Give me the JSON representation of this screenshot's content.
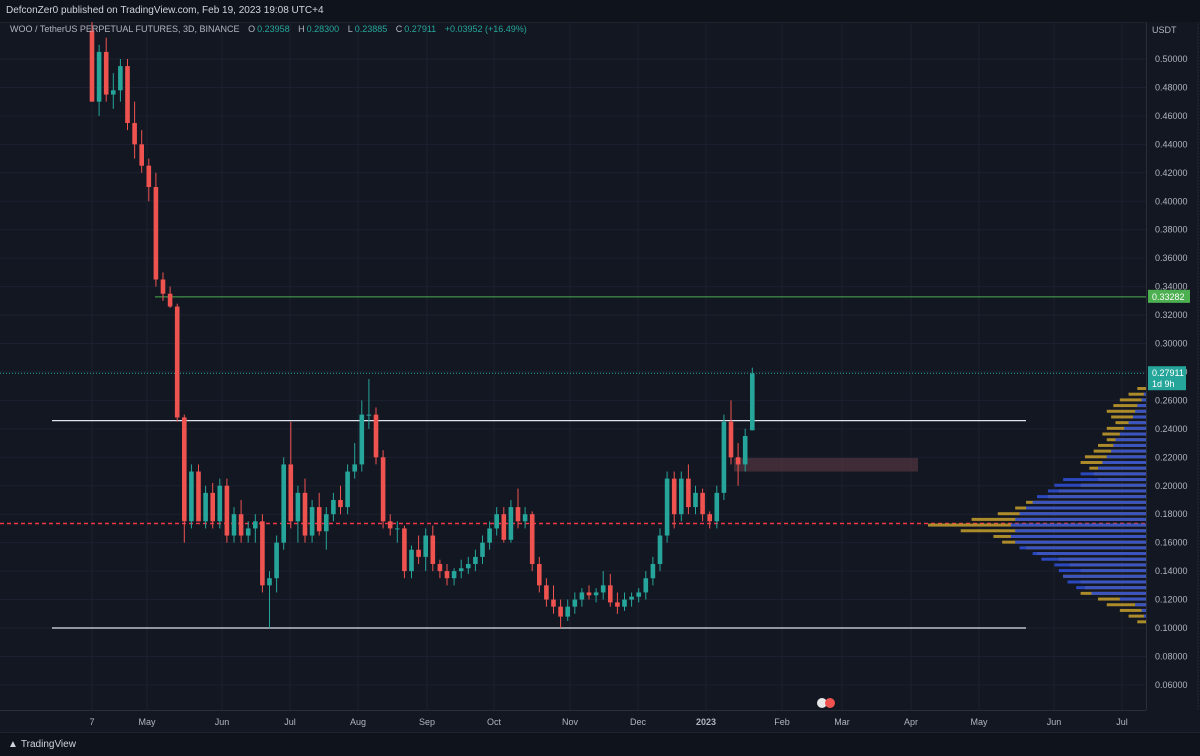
{
  "header": {
    "published_by": "DefconZer0 published on TradingView.com, Feb 19, 2023 19:08 UTC+4"
  },
  "symbol": {
    "name": "WOO / TetherUS PERPETUAL FUTURES, 3D, BINANCE",
    "open_label": "O",
    "open": "0.23958",
    "high_label": "H",
    "high": "0.28300",
    "low_label": "L",
    "low": "0.23885",
    "close_label": "C",
    "close": "0.27911",
    "change": "+0.03952 (+16.49%)"
  },
  "footer": {
    "logo_text": "TradingView"
  },
  "colors": {
    "background": "#131722",
    "bull": "#26a69a",
    "bear": "#ef5350",
    "green_line": "#4caf50",
    "red_dashed_line": "#f23645",
    "volume_profile_up": "#2f4ecf",
    "volume_profile_down": "#c8a02d"
  },
  "chart_data": {
    "type": "candlestick",
    "currency": "USDT",
    "y_ticks": [
      "0.50000",
      "0.48000",
      "0.46000",
      "0.44000",
      "0.42000",
      "0.40000",
      "0.38000",
      "0.36000",
      "0.34000",
      "0.32000",
      "0.30000",
      "0.28000",
      "0.26000",
      "0.24000",
      "0.22000",
      "0.20000",
      "0.18000",
      "0.16000",
      "0.14000",
      "0.12000",
      "0.10000",
      "0.08000",
      "0.06000"
    ],
    "x_ticks": [
      "7",
      "May",
      "Jun",
      "Jul",
      "Aug",
      "Sep",
      "Oct",
      "Nov",
      "Dec",
      "2023",
      "Feb",
      "Mar",
      "Apr",
      "May",
      "Jun",
      "Jul"
    ],
    "price_labels": {
      "resistance": "0.33282",
      "last_price": "0.27911",
      "countdown": "1d 9h"
    },
    "horizontal_levels": [
      {
        "price": 0.3328,
        "style": "solid",
        "color": "green"
      },
      {
        "price": 0.2458,
        "style": "solid",
        "color": "white"
      },
      {
        "price": 0.1735,
        "style": "dashed",
        "color": "red"
      },
      {
        "price": 0.1,
        "style": "solid",
        "color": "white"
      }
    ],
    "zone": {
      "price_top": 0.2195,
      "price_bottom": 0.21
    },
    "candles": [
      {
        "o": 0.52,
        "h": 0.53,
        "l": 0.47,
        "c": 0.47
      },
      {
        "o": 0.47,
        "h": 0.51,
        "l": 0.46,
        "c": 0.505
      },
      {
        "o": 0.505,
        "h": 0.515,
        "l": 0.47,
        "c": 0.475
      },
      {
        "o": 0.475,
        "h": 0.49,
        "l": 0.465,
        "c": 0.478
      },
      {
        "o": 0.478,
        "h": 0.5,
        "l": 0.47,
        "c": 0.495
      },
      {
        "o": 0.495,
        "h": 0.5,
        "l": 0.45,
        "c": 0.455
      },
      {
        "o": 0.455,
        "h": 0.47,
        "l": 0.43,
        "c": 0.44
      },
      {
        "o": 0.44,
        "h": 0.45,
        "l": 0.42,
        "c": 0.425
      },
      {
        "o": 0.425,
        "h": 0.43,
        "l": 0.4,
        "c": 0.41
      },
      {
        "o": 0.41,
        "h": 0.42,
        "l": 0.34,
        "c": 0.345
      },
      {
        "o": 0.345,
        "h": 0.35,
        "l": 0.33,
        "c": 0.335
      },
      {
        "o": 0.335,
        "h": 0.34,
        "l": 0.325,
        "c": 0.326
      },
      {
        "o": 0.326,
        "h": 0.328,
        "l": 0.245,
        "c": 0.248
      },
      {
        "o": 0.248,
        "h": 0.25,
        "l": 0.16,
        "c": 0.175
      },
      {
        "o": 0.175,
        "h": 0.215,
        "l": 0.17,
        "c": 0.21
      },
      {
        "o": 0.21,
        "h": 0.215,
        "l": 0.175,
        "c": 0.175
      },
      {
        "o": 0.175,
        "h": 0.2,
        "l": 0.17,
        "c": 0.195
      },
      {
        "o": 0.195,
        "h": 0.202,
        "l": 0.17,
        "c": 0.175
      },
      {
        "o": 0.175,
        "h": 0.205,
        "l": 0.17,
        "c": 0.2
      },
      {
        "o": 0.2,
        "h": 0.205,
        "l": 0.16,
        "c": 0.165
      },
      {
        "o": 0.165,
        "h": 0.185,
        "l": 0.16,
        "c": 0.18
      },
      {
        "o": 0.18,
        "h": 0.19,
        "l": 0.16,
        "c": 0.165
      },
      {
        "o": 0.165,
        "h": 0.175,
        "l": 0.16,
        "c": 0.17
      },
      {
        "o": 0.17,
        "h": 0.18,
        "l": 0.16,
        "c": 0.175
      },
      {
        "o": 0.175,
        "h": 0.18,
        "l": 0.125,
        "c": 0.13
      },
      {
        "o": 0.13,
        "h": 0.14,
        "l": 0.1,
        "c": 0.135
      },
      {
        "o": 0.135,
        "h": 0.165,
        "l": 0.125,
        "c": 0.16
      },
      {
        "o": 0.16,
        "h": 0.22,
        "l": 0.155,
        "c": 0.215
      },
      {
        "o": 0.215,
        "h": 0.245,
        "l": 0.17,
        "c": 0.175
      },
      {
        "o": 0.175,
        "h": 0.2,
        "l": 0.16,
        "c": 0.195
      },
      {
        "o": 0.195,
        "h": 0.205,
        "l": 0.16,
        "c": 0.165
      },
      {
        "o": 0.165,
        "h": 0.19,
        "l": 0.16,
        "c": 0.185
      },
      {
        "o": 0.185,
        "h": 0.195,
        "l": 0.165,
        "c": 0.168
      },
      {
        "o": 0.168,
        "h": 0.185,
        "l": 0.155,
        "c": 0.18
      },
      {
        "o": 0.18,
        "h": 0.195,
        "l": 0.175,
        "c": 0.19
      },
      {
        "o": 0.19,
        "h": 0.2,
        "l": 0.18,
        "c": 0.185
      },
      {
        "o": 0.185,
        "h": 0.215,
        "l": 0.18,
        "c": 0.21
      },
      {
        "o": 0.21,
        "h": 0.23,
        "l": 0.205,
        "c": 0.215
      },
      {
        "o": 0.215,
        "h": 0.26,
        "l": 0.21,
        "c": 0.25
      },
      {
        "o": 0.25,
        "h": 0.275,
        "l": 0.24,
        "c": 0.25
      },
      {
        "o": 0.25,
        "h": 0.255,
        "l": 0.215,
        "c": 0.22
      },
      {
        "o": 0.22,
        "h": 0.225,
        "l": 0.17,
        "c": 0.175
      },
      {
        "o": 0.175,
        "h": 0.18,
        "l": 0.165,
        "c": 0.17
      },
      {
        "o": 0.17,
        "h": 0.175,
        "l": 0.16,
        "c": 0.17
      },
      {
        "o": 0.17,
        "h": 0.172,
        "l": 0.135,
        "c": 0.14
      },
      {
        "o": 0.14,
        "h": 0.158,
        "l": 0.135,
        "c": 0.155
      },
      {
        "o": 0.155,
        "h": 0.165,
        "l": 0.145,
        "c": 0.15
      },
      {
        "o": 0.15,
        "h": 0.17,
        "l": 0.14,
        "c": 0.165
      },
      {
        "o": 0.165,
        "h": 0.172,
        "l": 0.14,
        "c": 0.145
      },
      {
        "o": 0.145,
        "h": 0.148,
        "l": 0.135,
        "c": 0.14
      },
      {
        "o": 0.14,
        "h": 0.145,
        "l": 0.13,
        "c": 0.135
      },
      {
        "o": 0.135,
        "h": 0.142,
        "l": 0.13,
        "c": 0.14
      },
      {
        "o": 0.14,
        "h": 0.148,
        "l": 0.135,
        "c": 0.142
      },
      {
        "o": 0.142,
        "h": 0.15,
        "l": 0.138,
        "c": 0.145
      },
      {
        "o": 0.145,
        "h": 0.155,
        "l": 0.14,
        "c": 0.15
      },
      {
        "o": 0.15,
        "h": 0.165,
        "l": 0.145,
        "c": 0.16
      },
      {
        "o": 0.16,
        "h": 0.175,
        "l": 0.155,
        "c": 0.17
      },
      {
        "o": 0.17,
        "h": 0.185,
        "l": 0.165,
        "c": 0.18
      },
      {
        "o": 0.18,
        "h": 0.185,
        "l": 0.16,
        "c": 0.162
      },
      {
        "o": 0.162,
        "h": 0.19,
        "l": 0.16,
        "c": 0.185
      },
      {
        "o": 0.185,
        "h": 0.198,
        "l": 0.17,
        "c": 0.175
      },
      {
        "o": 0.175,
        "h": 0.185,
        "l": 0.17,
        "c": 0.18
      },
      {
        "o": 0.18,
        "h": 0.182,
        "l": 0.14,
        "c": 0.145
      },
      {
        "o": 0.145,
        "h": 0.15,
        "l": 0.125,
        "c": 0.13
      },
      {
        "o": 0.13,
        "h": 0.135,
        "l": 0.115,
        "c": 0.12
      },
      {
        "o": 0.12,
        "h": 0.13,
        "l": 0.11,
        "c": 0.115
      },
      {
        "o": 0.115,
        "h": 0.12,
        "l": 0.1,
        "c": 0.108
      },
      {
        "o": 0.108,
        "h": 0.12,
        "l": 0.105,
        "c": 0.115
      },
      {
        "o": 0.115,
        "h": 0.125,
        "l": 0.11,
        "c": 0.12
      },
      {
        "o": 0.12,
        "h": 0.128,
        "l": 0.115,
        "c": 0.125
      },
      {
        "o": 0.125,
        "h": 0.13,
        "l": 0.12,
        "c": 0.123
      },
      {
        "o": 0.123,
        "h": 0.128,
        "l": 0.118,
        "c": 0.125
      },
      {
        "o": 0.125,
        "h": 0.14,
        "l": 0.12,
        "c": 0.13
      },
      {
        "o": 0.13,
        "h": 0.138,
        "l": 0.115,
        "c": 0.118
      },
      {
        "o": 0.118,
        "h": 0.125,
        "l": 0.11,
        "c": 0.115
      },
      {
        "o": 0.115,
        "h": 0.125,
        "l": 0.112,
        "c": 0.12
      },
      {
        "o": 0.12,
        "h": 0.125,
        "l": 0.115,
        "c": 0.122
      },
      {
        "o": 0.122,
        "h": 0.128,
        "l": 0.118,
        "c": 0.125
      },
      {
        "o": 0.125,
        "h": 0.14,
        "l": 0.12,
        "c": 0.135
      },
      {
        "o": 0.135,
        "h": 0.15,
        "l": 0.13,
        "c": 0.145
      },
      {
        "o": 0.145,
        "h": 0.17,
        "l": 0.14,
        "c": 0.165
      },
      {
        "o": 0.165,
        "h": 0.21,
        "l": 0.16,
        "c": 0.205
      },
      {
        "o": 0.205,
        "h": 0.21,
        "l": 0.17,
        "c": 0.18
      },
      {
        "o": 0.18,
        "h": 0.21,
        "l": 0.175,
        "c": 0.205
      },
      {
        "o": 0.205,
        "h": 0.215,
        "l": 0.18,
        "c": 0.185
      },
      {
        "o": 0.185,
        "h": 0.2,
        "l": 0.18,
        "c": 0.195
      },
      {
        "o": 0.195,
        "h": 0.198,
        "l": 0.175,
        "c": 0.18
      },
      {
        "o": 0.18,
        "h": 0.182,
        "l": 0.17,
        "c": 0.175
      },
      {
        "o": 0.175,
        "h": 0.2,
        "l": 0.17,
        "c": 0.195
      },
      {
        "o": 0.195,
        "h": 0.25,
        "l": 0.19,
        "c": 0.245
      },
      {
        "o": 0.245,
        "h": 0.26,
        "l": 0.215,
        "c": 0.22
      },
      {
        "o": 0.22,
        "h": 0.23,
        "l": 0.2,
        "c": 0.215
      },
      {
        "o": 0.215,
        "h": 0.24,
        "l": 0.21,
        "c": 0.235
      },
      {
        "o": 0.239,
        "h": 0.283,
        "l": 0.239,
        "c": 0.279
      }
    ],
    "volume_profile": [
      {
        "price": 0.268,
        "up": 0.0,
        "down": 0.04
      },
      {
        "price": 0.264,
        "up": 0.01,
        "down": 0.08
      },
      {
        "price": 0.26,
        "up": 0.02,
        "down": 0.12
      },
      {
        "price": 0.256,
        "up": 0.04,
        "down": 0.15
      },
      {
        "price": 0.252,
        "up": 0.05,
        "down": 0.18
      },
      {
        "price": 0.248,
        "up": 0.06,
        "down": 0.16
      },
      {
        "price": 0.244,
        "up": 0.08,
        "down": 0.14
      },
      {
        "price": 0.24,
        "up": 0.1,
        "down": 0.18
      },
      {
        "price": 0.236,
        "up": 0.12,
        "down": 0.2
      },
      {
        "price": 0.232,
        "up": 0.14,
        "down": 0.18
      },
      {
        "price": 0.228,
        "up": 0.15,
        "down": 0.22
      },
      {
        "price": 0.224,
        "up": 0.16,
        "down": 0.24
      },
      {
        "price": 0.22,
        "up": 0.18,
        "down": 0.28
      },
      {
        "price": 0.216,
        "up": 0.2,
        "down": 0.3
      },
      {
        "price": 0.212,
        "up": 0.22,
        "down": 0.26
      },
      {
        "price": 0.208,
        "up": 0.3,
        "down": 0.24
      },
      {
        "price": 0.204,
        "up": 0.38,
        "down": 0.22
      },
      {
        "price": 0.2,
        "up": 0.42,
        "down": 0.3
      },
      {
        "price": 0.196,
        "up": 0.45,
        "down": 0.4
      },
      {
        "price": 0.192,
        "up": 0.5,
        "down": 0.45
      },
      {
        "price": 0.188,
        "up": 0.52,
        "down": 0.55
      },
      {
        "price": 0.184,
        "up": 0.55,
        "down": 0.6
      },
      {
        "price": 0.18,
        "up": 0.58,
        "down": 0.68
      },
      {
        "price": 0.176,
        "up": 0.6,
        "down": 0.8
      },
      {
        "price": 0.172,
        "up": 0.62,
        "down": 1.0
      },
      {
        "price": 0.168,
        "up": 0.6,
        "down": 0.85
      },
      {
        "price": 0.164,
        "up": 0.62,
        "down": 0.7
      },
      {
        "price": 0.16,
        "up": 0.6,
        "down": 0.66
      },
      {
        "price": 0.156,
        "up": 0.58,
        "down": 0.55
      },
      {
        "price": 0.152,
        "up": 0.52,
        "down": 0.5
      },
      {
        "price": 0.148,
        "up": 0.48,
        "down": 0.4
      },
      {
        "price": 0.144,
        "up": 0.42,
        "down": 0.35
      },
      {
        "price": 0.14,
        "up": 0.4,
        "down": 0.3
      },
      {
        "price": 0.136,
        "up": 0.38,
        "down": 0.38
      },
      {
        "price": 0.132,
        "up": 0.36,
        "down": 0.3
      },
      {
        "price": 0.128,
        "up": 0.32,
        "down": 0.28
      },
      {
        "price": 0.124,
        "up": 0.25,
        "down": 0.3
      },
      {
        "price": 0.12,
        "up": 0.12,
        "down": 0.22
      },
      {
        "price": 0.116,
        "up": 0.05,
        "down": 0.18
      },
      {
        "price": 0.112,
        "up": 0.02,
        "down": 0.12
      },
      {
        "price": 0.108,
        "up": 0.01,
        "down": 0.08
      },
      {
        "price": 0.104,
        "up": 0.0,
        "down": 0.04
      }
    ]
  }
}
